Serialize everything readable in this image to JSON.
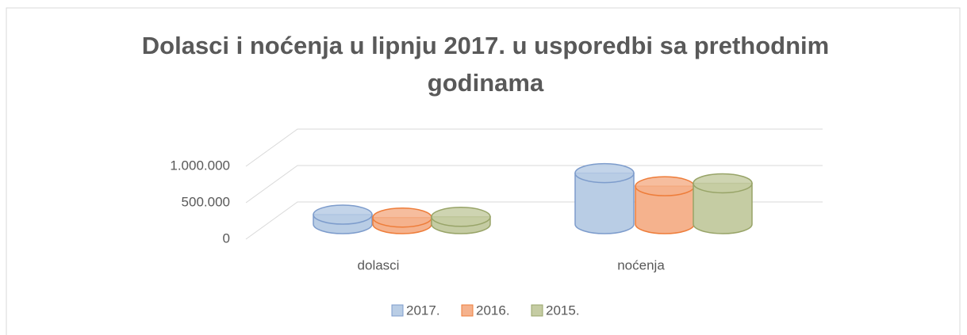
{
  "chart_data": {
    "type": "bar3d",
    "title": "Dolasci  i noćenja u lipnju 2017.  u usporedbi sa prethodnim godinama",
    "categories": [
      "dolasci",
      "noćenja"
    ],
    "series": [
      {
        "name": "2017.",
        "color": "#b9cde5",
        "values": [
          130000,
          700000
        ]
      },
      {
        "name": "2016.",
        "color": "#f5b28d",
        "values": [
          90000,
          520000
        ]
      },
      {
        "name": "2015.",
        "color": "#c5cca3",
        "values": [
          100000,
          560000
        ]
      }
    ],
    "ylim": [
      0,
      1000000
    ],
    "yticks": [
      {
        "value": 0,
        "label": "0"
      },
      {
        "value": 500000,
        "label": "500.000"
      },
      {
        "value": 1000000,
        "label": "1.000.000"
      }
    ],
    "grid": true,
    "legend": "bottom"
  }
}
